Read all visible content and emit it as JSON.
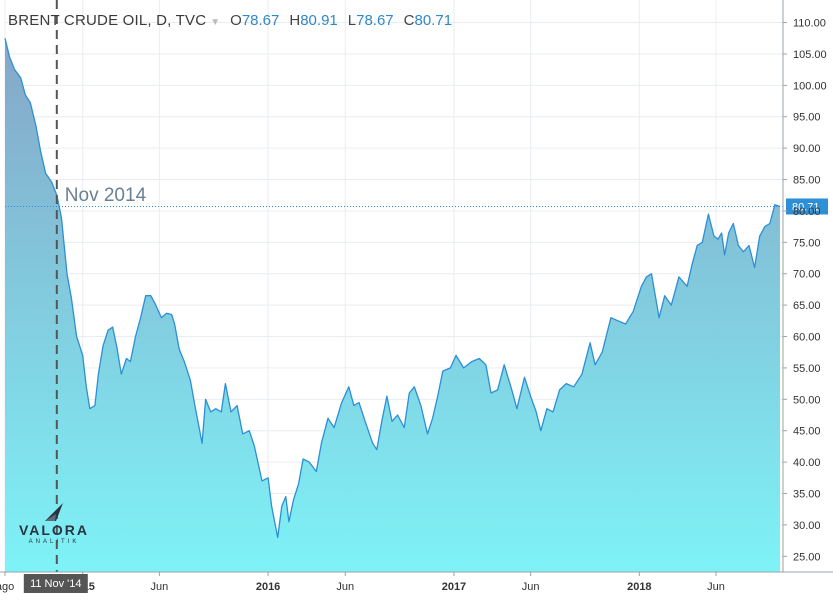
{
  "legend": {
    "symbol": "BRENT CRUDE OIL, D, TVC",
    "o_label": "O",
    "o_value": "78.67",
    "h_label": "H",
    "h_value": "80.91",
    "l_label": "L",
    "l_value": "78.67",
    "c_label": "C",
    "c_value": "80.71"
  },
  "logo": {
    "name": "VALORA",
    "sub": "ANALITIK"
  },
  "colors": {
    "line": "#2d8fd5",
    "fill_top": "#7fa2c4",
    "fill_bottom": "#7ef3f7",
    "price_tag": "#2d8fd5",
    "marker_tag": "#555555",
    "annotation": "#6a7f92"
  },
  "chart_data": {
    "type": "area",
    "title": "BRENT CRUDE OIL, D, TVC",
    "xlabel": "",
    "ylabel": "",
    "x_range": [
      "2014-08-01",
      "2018-10-05"
    ],
    "ylim": [
      22.5,
      112
    ],
    "y_ticks": [
      "110.00",
      "105.00",
      "100.00",
      "95.00",
      "90.00",
      "85.00",
      "80.00",
      "75.00",
      "70.00",
      "65.00",
      "60.00",
      "55.00",
      "50.00",
      "45.00",
      "40.00",
      "35.00",
      "30.00",
      "25.00"
    ],
    "x_ticks": [
      {
        "date": "2014-08-01",
        "label": "ago"
      },
      {
        "date": "2015-01-01",
        "label": "2015"
      },
      {
        "date": "2015-06-01",
        "label": "Jun"
      },
      {
        "date": "2016-01-01",
        "label": "2016"
      },
      {
        "date": "2016-06-01",
        "label": "Jun"
      },
      {
        "date": "2017-01-01",
        "label": "2017"
      },
      {
        "date": "2017-06-01",
        "label": "Jun"
      },
      {
        "date": "2018-01-01",
        "label": "2018"
      },
      {
        "date": "2018-06-01",
        "label": "Jun"
      }
    ],
    "grid": true,
    "last_price": 80.71,
    "last_price_label": "80.71",
    "marker": {
      "date": "2014-11-11",
      "label": "11 Nov '14"
    },
    "annotation": {
      "text": "Nov 2014",
      "date": "2014-11-11",
      "value": 82.5
    },
    "series": [
      {
        "points": [
          [
            "2014-08-01",
            107.5
          ],
          [
            "2014-08-10",
            104.5
          ],
          [
            "2014-08-20",
            102.5
          ],
          [
            "2014-09-01",
            101.2
          ],
          [
            "2014-09-10",
            98.5
          ],
          [
            "2014-09-20",
            97.2
          ],
          [
            "2014-10-01",
            93.5
          ],
          [
            "2014-10-10",
            89.5
          ],
          [
            "2014-10-20",
            86.0
          ],
          [
            "2014-11-01",
            84.6
          ],
          [
            "2014-11-11",
            82.5
          ],
          [
            "2014-11-20",
            79.0
          ],
          [
            "2014-12-01",
            70.0
          ],
          [
            "2014-12-10",
            66.0
          ],
          [
            "2014-12-20",
            60.0
          ],
          [
            "2015-01-01",
            57.0
          ],
          [
            "2015-01-08",
            52.0
          ],
          [
            "2015-01-15",
            48.5
          ],
          [
            "2015-01-25",
            49.0
          ],
          [
            "2015-02-01",
            54.0
          ],
          [
            "2015-02-10",
            58.5
          ],
          [
            "2015-02-20",
            61.0
          ],
          [
            "2015-03-01",
            61.5
          ],
          [
            "2015-03-10",
            58.0
          ],
          [
            "2015-03-18",
            54.0
          ],
          [
            "2015-03-28",
            56.5
          ],
          [
            "2015-04-05",
            56.0
          ],
          [
            "2015-04-15",
            60.0
          ],
          [
            "2015-04-25",
            63.0
          ],
          [
            "2015-05-05",
            66.5
          ],
          [
            "2015-05-15",
            66.5
          ],
          [
            "2015-05-25",
            65.0
          ],
          [
            "2015-06-05",
            63.0
          ],
          [
            "2015-06-15",
            63.7
          ],
          [
            "2015-06-25",
            63.5
          ],
          [
            "2015-07-01",
            62.0
          ],
          [
            "2015-07-10",
            58.0
          ],
          [
            "2015-07-20",
            56.0
          ],
          [
            "2015-08-01",
            53.0
          ],
          [
            "2015-08-10",
            49.0
          ],
          [
            "2015-08-24",
            43.0
          ],
          [
            "2015-08-31",
            50.0
          ],
          [
            "2015-09-10",
            48.0
          ],
          [
            "2015-09-20",
            48.5
          ],
          [
            "2015-10-01",
            48.0
          ],
          [
            "2015-10-09",
            52.5
          ],
          [
            "2015-10-20",
            48.0
          ],
          [
            "2015-11-01",
            49.0
          ],
          [
            "2015-11-12",
            44.5
          ],
          [
            "2015-11-25",
            45.0
          ],
          [
            "2015-12-05",
            42.5
          ],
          [
            "2015-12-20",
            37.0
          ],
          [
            "2016-01-01",
            37.5
          ],
          [
            "2016-01-08",
            33.0
          ],
          [
            "2016-01-20",
            28.0
          ],
          [
            "2016-01-28",
            33.0
          ],
          [
            "2016-02-05",
            34.5
          ],
          [
            "2016-02-11",
            30.5
          ],
          [
            "2016-02-20",
            34.0
          ],
          [
            "2016-03-01",
            36.5
          ],
          [
            "2016-03-10",
            40.5
          ],
          [
            "2016-03-22",
            40.0
          ],
          [
            "2016-04-05",
            38.5
          ],
          [
            "2016-04-15",
            43.0
          ],
          [
            "2016-04-28",
            47.0
          ],
          [
            "2016-05-10",
            45.5
          ],
          [
            "2016-05-25",
            49.5
          ],
          [
            "2016-06-08",
            52.0
          ],
          [
            "2016-06-18",
            49.0
          ],
          [
            "2016-06-28",
            49.5
          ],
          [
            "2016-07-10",
            46.5
          ],
          [
            "2016-07-25",
            43.0
          ],
          [
            "2016-08-02",
            42.0
          ],
          [
            "2016-08-12",
            46.5
          ],
          [
            "2016-08-22",
            50.5
          ],
          [
            "2016-09-01",
            46.5
          ],
          [
            "2016-09-12",
            47.5
          ],
          [
            "2016-09-25",
            45.5
          ],
          [
            "2016-10-05",
            51.0
          ],
          [
            "2016-10-15",
            52.0
          ],
          [
            "2016-10-28",
            49.0
          ],
          [
            "2016-11-10",
            44.5
          ],
          [
            "2016-11-20",
            47.0
          ],
          [
            "2016-11-30",
            50.5
          ],
          [
            "2016-12-10",
            54.5
          ],
          [
            "2016-12-25",
            55.0
          ],
          [
            "2017-01-05",
            57.0
          ],
          [
            "2017-01-20",
            55.0
          ],
          [
            "2017-02-05",
            56.0
          ],
          [
            "2017-02-20",
            56.5
          ],
          [
            "2017-03-05",
            55.5
          ],
          [
            "2017-03-15",
            51.0
          ],
          [
            "2017-03-28",
            51.5
          ],
          [
            "2017-04-10",
            55.5
          ],
          [
            "2017-04-25",
            51.5
          ],
          [
            "2017-05-05",
            48.5
          ],
          [
            "2017-05-20",
            53.5
          ],
          [
            "2017-06-01",
            50.5
          ],
          [
            "2017-06-12",
            48.0
          ],
          [
            "2017-06-21",
            45.0
          ],
          [
            "2017-07-03",
            48.5
          ],
          [
            "2017-07-15",
            48.0
          ],
          [
            "2017-07-28",
            51.5
          ],
          [
            "2017-08-10",
            52.5
          ],
          [
            "2017-08-25",
            52.0
          ],
          [
            "2017-09-10",
            54.0
          ],
          [
            "2017-09-26",
            59.0
          ],
          [
            "2017-10-06",
            55.5
          ],
          [
            "2017-10-20",
            57.5
          ],
          [
            "2017-11-06",
            63.0
          ],
          [
            "2017-11-20",
            62.5
          ],
          [
            "2017-12-05",
            62.0
          ],
          [
            "2017-12-20",
            64.0
          ],
          [
            "2018-01-05",
            68.0
          ],
          [
            "2018-01-15",
            69.5
          ],
          [
            "2018-01-25",
            70.0
          ],
          [
            "2018-02-09",
            63.0
          ],
          [
            "2018-02-20",
            66.5
          ],
          [
            "2018-03-05",
            65.0
          ],
          [
            "2018-03-20",
            69.5
          ],
          [
            "2018-04-05",
            68.0
          ],
          [
            "2018-04-15",
            71.5
          ],
          [
            "2018-04-25",
            74.5
          ],
          [
            "2018-05-05",
            75.0
          ],
          [
            "2018-05-17",
            79.5
          ],
          [
            "2018-05-28",
            76.0
          ],
          [
            "2018-06-05",
            75.5
          ],
          [
            "2018-06-12",
            76.5
          ],
          [
            "2018-06-18",
            73.0
          ],
          [
            "2018-06-26",
            76.5
          ],
          [
            "2018-07-05",
            78.0
          ],
          [
            "2018-07-15",
            74.5
          ],
          [
            "2018-07-25",
            73.5
          ],
          [
            "2018-08-05",
            74.5
          ],
          [
            "2018-08-16",
            71.0
          ],
          [
            "2018-08-26",
            76.0
          ],
          [
            "2018-09-05",
            77.5
          ],
          [
            "2018-09-15",
            78.0
          ],
          [
            "2018-09-25",
            81.0
          ],
          [
            "2018-10-05",
            80.71
          ]
        ]
      }
    ]
  }
}
